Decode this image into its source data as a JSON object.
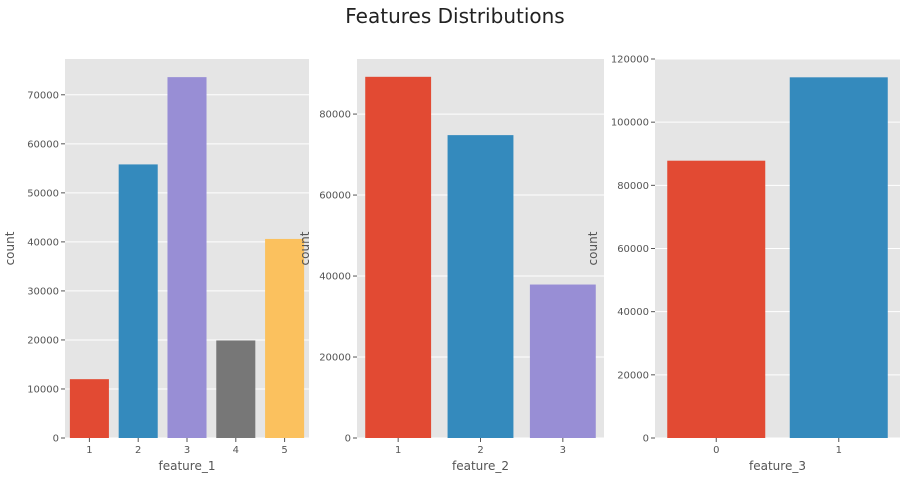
{
  "title": "Features Distributions",
  "chart_data": [
    {
      "type": "bar",
      "categories": [
        "1",
        "2",
        "3",
        "4",
        "5"
      ],
      "values": [
        12000,
        55800,
        73600,
        19900,
        40600
      ],
      "colors": [
        "#E24A33",
        "#348ABD",
        "#988ED5",
        "#777777",
        "#FBC15E"
      ],
      "xlabel": "feature_1",
      "ylabel": "count",
      "ylim": [
        0,
        77300
      ],
      "yticks": [
        0,
        10000,
        20000,
        30000,
        40000,
        50000,
        60000,
        70000
      ],
      "grid": true
    },
    {
      "type": "bar",
      "categories": [
        "1",
        "2",
        "3"
      ],
      "values": [
        89200,
        74800,
        37900
      ],
      "colors": [
        "#E24A33",
        "#348ABD",
        "#988ED5"
      ],
      "xlabel": "feature_2",
      "ylabel": "count",
      "ylim": [
        0,
        93600
      ],
      "yticks": [
        0,
        20000,
        40000,
        60000,
        80000
      ],
      "grid": true
    },
    {
      "type": "bar",
      "categories": [
        "0",
        "1"
      ],
      "values": [
        87800,
        114200
      ],
      "colors": [
        "#E24A33",
        "#348ABD"
      ],
      "xlabel": "feature_3",
      "ylabel": "count",
      "ylim": [
        0,
        120000
      ],
      "yticks": [
        0,
        20000,
        40000,
        60000,
        80000,
        100000,
        120000
      ],
      "grid": true
    }
  ]
}
